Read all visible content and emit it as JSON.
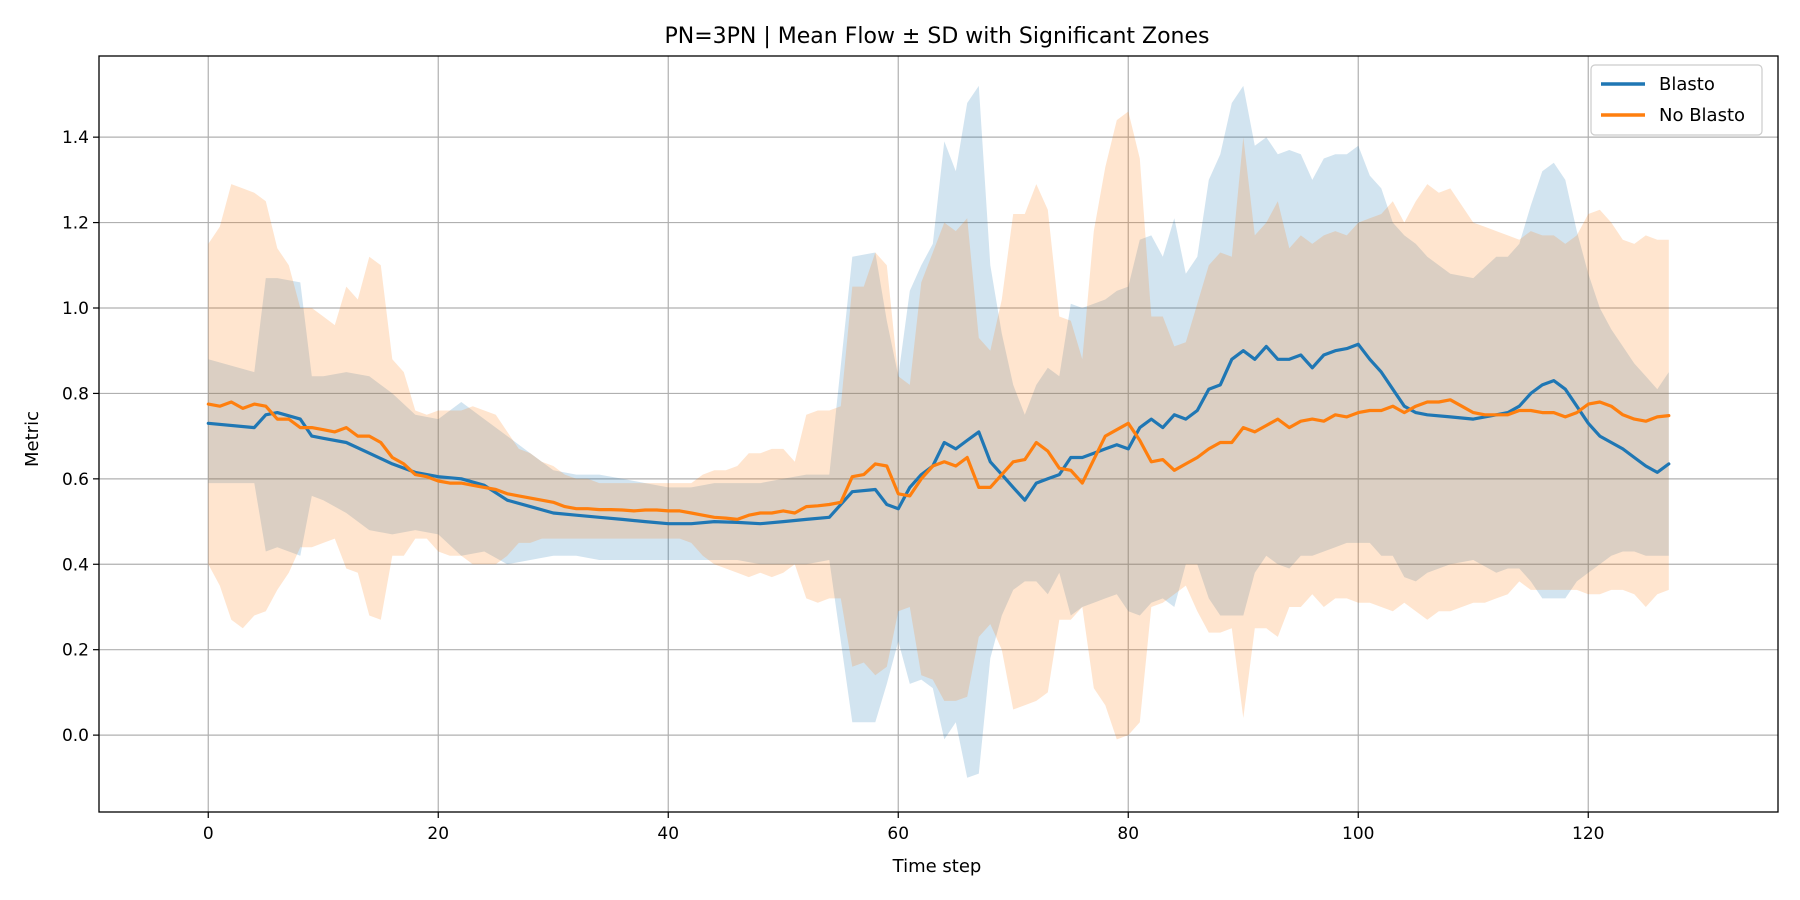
{
  "chart_data": {
    "type": "line",
    "title": "PN=3PN | Mean Flow ± SD with Significant Zones",
    "xlabel": "Time step",
    "ylabel": "Metric",
    "xlim": [
      -9.5,
      136.5
    ],
    "ylim": [
      -0.18,
      1.59
    ],
    "xticks": [
      0,
      20,
      40,
      60,
      80,
      100,
      120
    ],
    "yticks": [
      0.0,
      0.2,
      0.4,
      0.6,
      0.8,
      1.0,
      1.2,
      1.4
    ],
    "xtick_labels": [
      "0",
      "20",
      "40",
      "60",
      "80",
      "100",
      "120"
    ],
    "ytick_labels": [
      "0.0",
      "0.2",
      "0.4",
      "0.6",
      "0.8",
      "1.0",
      "1.2",
      "1.4"
    ],
    "grid": true,
    "legend_position": "top-right",
    "series": [
      {
        "name": "Blasto",
        "color": "#1f77b4",
        "band_opacity": 0.2,
        "x": [
          0,
          4,
          5,
          6,
          8,
          9,
          10,
          12,
          14,
          16,
          18,
          20,
          22,
          24,
          26,
          28,
          30,
          32,
          34,
          36,
          38,
          40,
          42,
          44,
          46,
          48,
          50,
          52,
          54,
          56,
          58,
          59,
          60,
          61,
          62,
          63,
          64,
          65,
          66,
          67,
          68,
          69,
          70,
          71,
          72,
          73,
          74,
          75,
          76,
          77,
          78,
          79,
          80,
          81,
          82,
          83,
          84,
          85,
          86,
          87,
          88,
          89,
          90,
          91,
          92,
          93,
          94,
          95,
          96,
          97,
          98,
          99,
          100,
          101,
          102,
          103,
          104,
          105,
          106,
          108,
          110,
          112,
          113,
          114,
          115,
          116,
          117,
          118,
          119,
          120,
          121,
          122,
          123,
          124,
          125,
          126,
          127
        ],
        "mean": [
          0.73,
          0.72,
          0.75,
          0.755,
          0.74,
          0.7,
          0.695,
          0.685,
          0.66,
          0.635,
          0.615,
          0.605,
          0.6,
          0.585,
          0.55,
          0.535,
          0.52,
          0.515,
          0.51,
          0.505,
          0.5,
          0.495,
          0.495,
          0.5,
          0.498,
          0.495,
          0.5,
          0.505,
          0.51,
          0.57,
          0.575,
          0.54,
          0.53,
          0.58,
          0.61,
          0.63,
          0.685,
          0.67,
          0.69,
          0.71,
          0.64,
          0.61,
          0.58,
          0.55,
          0.59,
          0.6,
          0.61,
          0.65,
          0.65,
          0.66,
          0.67,
          0.68,
          0.67,
          0.72,
          0.74,
          0.72,
          0.75,
          0.74,
          0.76,
          0.81,
          0.82,
          0.88,
          0.9,
          0.88,
          0.91,
          0.88,
          0.88,
          0.89,
          0.86,
          0.89,
          0.9,
          0.905,
          0.915,
          0.88,
          0.85,
          0.81,
          0.77,
          0.755,
          0.75,
          0.745,
          0.74,
          0.75,
          0.755,
          0.77,
          0.8,
          0.82,
          0.83,
          0.81,
          0.77,
          0.73,
          0.7,
          0.685,
          0.67,
          0.65,
          0.63,
          0.615,
          0.635
        ],
        "upper": [
          0.88,
          0.85,
          1.07,
          1.07,
          1.06,
          0.84,
          0.84,
          0.85,
          0.84,
          0.8,
          0.75,
          0.74,
          0.78,
          0.74,
          0.7,
          0.66,
          0.62,
          0.61,
          0.61,
          0.6,
          0.59,
          0.58,
          0.58,
          0.59,
          0.59,
          0.59,
          0.6,
          0.61,
          0.61,
          1.12,
          1.13,
          0.97,
          0.84,
          1.04,
          1.1,
          1.15,
          1.39,
          1.32,
          1.48,
          1.52,
          1.1,
          0.94,
          0.82,
          0.75,
          0.82,
          0.86,
          0.84,
          1.01,
          1.0,
          1.01,
          1.02,
          1.04,
          1.05,
          1.16,
          1.17,
          1.12,
          1.21,
          1.08,
          1.12,
          1.3,
          1.36,
          1.48,
          1.52,
          1.38,
          1.4,
          1.36,
          1.37,
          1.36,
          1.3,
          1.35,
          1.36,
          1.36,
          1.38,
          1.31,
          1.28,
          1.2,
          1.17,
          1.15,
          1.12,
          1.08,
          1.07,
          1.12,
          1.12,
          1.15,
          1.24,
          1.32,
          1.34,
          1.3,
          1.18,
          1.08,
          1.0,
          0.95,
          0.91,
          0.87,
          0.84,
          0.81,
          0.85
        ],
        "lower": [
          0.59,
          0.59,
          0.43,
          0.44,
          0.42,
          0.56,
          0.55,
          0.52,
          0.48,
          0.47,
          0.48,
          0.47,
          0.42,
          0.43,
          0.4,
          0.41,
          0.42,
          0.42,
          0.41,
          0.41,
          0.41,
          0.41,
          0.41,
          0.41,
          0.41,
          0.4,
          0.4,
          0.4,
          0.41,
          0.03,
          0.03,
          0.12,
          0.22,
          0.12,
          0.13,
          0.11,
          -0.01,
          0.03,
          -0.1,
          -0.09,
          0.18,
          0.28,
          0.34,
          0.36,
          0.36,
          0.33,
          0.38,
          0.28,
          0.3,
          0.31,
          0.32,
          0.33,
          0.29,
          0.28,
          0.31,
          0.32,
          0.3,
          0.4,
          0.4,
          0.32,
          0.28,
          0.28,
          0.28,
          0.38,
          0.42,
          0.4,
          0.39,
          0.42,
          0.42,
          0.43,
          0.44,
          0.45,
          0.45,
          0.45,
          0.42,
          0.42,
          0.37,
          0.36,
          0.38,
          0.4,
          0.41,
          0.38,
          0.39,
          0.39,
          0.36,
          0.32,
          0.32,
          0.32,
          0.36,
          0.38,
          0.4,
          0.42,
          0.43,
          0.43,
          0.42,
          0.42,
          0.42
        ]
      },
      {
        "name": "No Blasto",
        "color": "#ff7f0e",
        "band_opacity": 0.2,
        "x": [
          0,
          1,
          2,
          3,
          4,
          5,
          6,
          7,
          8,
          9,
          10,
          11,
          12,
          13,
          14,
          15,
          16,
          17,
          18,
          19,
          20,
          21,
          22,
          23,
          24,
          25,
          26,
          27,
          28,
          29,
          30,
          31,
          32,
          33,
          34,
          35,
          36,
          37,
          38,
          39,
          40,
          41,
          42,
          43,
          44,
          45,
          46,
          47,
          48,
          49,
          50,
          51,
          52,
          53,
          54,
          55,
          56,
          57,
          58,
          59,
          60,
          61,
          62,
          63,
          64,
          65,
          66,
          67,
          68,
          69,
          70,
          71,
          72,
          73,
          74,
          75,
          76,
          77,
          78,
          79,
          80,
          81,
          82,
          83,
          84,
          85,
          86,
          87,
          88,
          89,
          90,
          91,
          92,
          93,
          94,
          95,
          96,
          97,
          98,
          99,
          100,
          101,
          102,
          103,
          104,
          105,
          106,
          107,
          108,
          109,
          110,
          111,
          112,
          113,
          114,
          115,
          116,
          117,
          118,
          119,
          120,
          121,
          122,
          123,
          124,
          125,
          126,
          127
        ],
        "mean": [
          0.775,
          0.77,
          0.78,
          0.765,
          0.775,
          0.77,
          0.74,
          0.74,
          0.72,
          0.72,
          0.715,
          0.71,
          0.72,
          0.7,
          0.7,
          0.685,
          0.65,
          0.635,
          0.61,
          0.605,
          0.595,
          0.59,
          0.59,
          0.585,
          0.58,
          0.575,
          0.565,
          0.56,
          0.555,
          0.55,
          0.545,
          0.535,
          0.53,
          0.53,
          0.528,
          0.528,
          0.527,
          0.525,
          0.527,
          0.527,
          0.525,
          0.525,
          0.52,
          0.515,
          0.51,
          0.508,
          0.505,
          0.515,
          0.52,
          0.52,
          0.525,
          0.52,
          0.535,
          0.537,
          0.54,
          0.545,
          0.605,
          0.61,
          0.635,
          0.63,
          0.565,
          0.56,
          0.6,
          0.63,
          0.64,
          0.63,
          0.65,
          0.58,
          0.58,
          0.61,
          0.64,
          0.645,
          0.685,
          0.665,
          0.625,
          0.62,
          0.59,
          0.645,
          0.7,
          0.715,
          0.73,
          0.69,
          0.64,
          0.645,
          0.62,
          0.635,
          0.65,
          0.67,
          0.685,
          0.685,
          0.72,
          0.71,
          0.725,
          0.74,
          0.72,
          0.735,
          0.74,
          0.735,
          0.75,
          0.745,
          0.755,
          0.76,
          0.76,
          0.77,
          0.755,
          0.77,
          0.78,
          0.78,
          0.785,
          0.77,
          0.755,
          0.75,
          0.75,
          0.75,
          0.76,
          0.76,
          0.755,
          0.755,
          0.745,
          0.755,
          0.775,
          0.78,
          0.77,
          0.75,
          0.74,
          0.735,
          0.745,
          0.748
        ],
        "upper": [
          1.15,
          1.19,
          1.29,
          1.28,
          1.27,
          1.25,
          1.14,
          1.1,
          1.0,
          1.0,
          0.98,
          0.96,
          1.05,
          1.02,
          1.12,
          1.1,
          0.88,
          0.85,
          0.76,
          0.75,
          0.76,
          0.76,
          0.76,
          0.77,
          0.76,
          0.75,
          0.71,
          0.67,
          0.66,
          0.64,
          0.63,
          0.61,
          0.6,
          0.6,
          0.59,
          0.59,
          0.59,
          0.59,
          0.59,
          0.59,
          0.59,
          0.59,
          0.59,
          0.61,
          0.62,
          0.62,
          0.63,
          0.66,
          0.66,
          0.67,
          0.67,
          0.64,
          0.75,
          0.76,
          0.76,
          0.77,
          1.05,
          1.05,
          1.13,
          1.1,
          0.84,
          0.82,
          1.06,
          1.13,
          1.2,
          1.18,
          1.21,
          0.93,
          0.9,
          1.02,
          1.22,
          1.22,
          1.29,
          1.23,
          0.98,
          0.97,
          0.88,
          1.18,
          1.33,
          1.44,
          1.46,
          1.35,
          0.98,
          0.98,
          0.91,
          0.92,
          1.01,
          1.1,
          1.13,
          1.12,
          1.4,
          1.17,
          1.2,
          1.25,
          1.14,
          1.17,
          1.15,
          1.17,
          1.18,
          1.17,
          1.2,
          1.21,
          1.22,
          1.25,
          1.2,
          1.25,
          1.29,
          1.27,
          1.28,
          1.24,
          1.2,
          1.19,
          1.18,
          1.17,
          1.16,
          1.18,
          1.17,
          1.17,
          1.15,
          1.17,
          1.22,
          1.23,
          1.2,
          1.16,
          1.15,
          1.17,
          1.16,
          1.16
        ],
        "lower": [
          0.4,
          0.35,
          0.27,
          0.25,
          0.28,
          0.29,
          0.34,
          0.38,
          0.44,
          0.44,
          0.45,
          0.46,
          0.39,
          0.38,
          0.28,
          0.27,
          0.42,
          0.42,
          0.46,
          0.46,
          0.43,
          0.42,
          0.42,
          0.4,
          0.4,
          0.4,
          0.42,
          0.45,
          0.45,
          0.46,
          0.46,
          0.46,
          0.46,
          0.46,
          0.46,
          0.46,
          0.46,
          0.46,
          0.46,
          0.46,
          0.46,
          0.46,
          0.45,
          0.42,
          0.4,
          0.39,
          0.38,
          0.37,
          0.38,
          0.37,
          0.38,
          0.4,
          0.32,
          0.31,
          0.32,
          0.32,
          0.16,
          0.17,
          0.14,
          0.16,
          0.29,
          0.3,
          0.14,
          0.13,
          0.08,
          0.08,
          0.09,
          0.23,
          0.26,
          0.2,
          0.06,
          0.07,
          0.08,
          0.1,
          0.27,
          0.27,
          0.3,
          0.11,
          0.07,
          -0.01,
          0.0,
          0.03,
          0.3,
          0.31,
          0.33,
          0.35,
          0.29,
          0.24,
          0.24,
          0.25,
          0.04,
          0.25,
          0.25,
          0.23,
          0.3,
          0.3,
          0.33,
          0.3,
          0.32,
          0.32,
          0.31,
          0.31,
          0.3,
          0.29,
          0.31,
          0.29,
          0.27,
          0.29,
          0.29,
          0.3,
          0.31,
          0.31,
          0.32,
          0.33,
          0.36,
          0.34,
          0.34,
          0.34,
          0.34,
          0.34,
          0.33,
          0.33,
          0.34,
          0.34,
          0.33,
          0.3,
          0.33,
          0.34
        ]
      }
    ]
  }
}
